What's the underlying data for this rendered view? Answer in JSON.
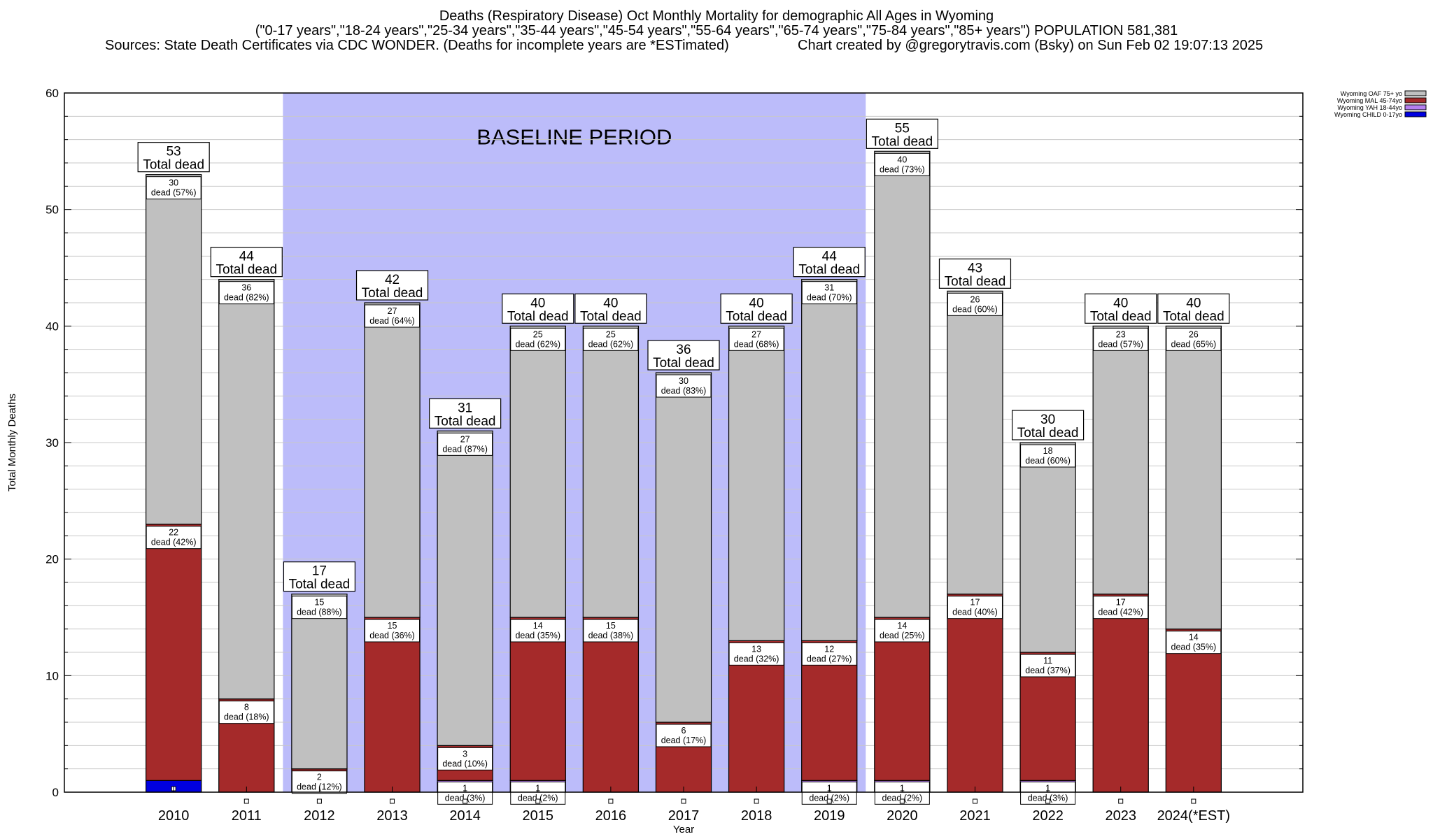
{
  "header": {
    "title_line1": "Deaths (Respiratory Disease) Oct Monthly Mortality for demographic All Ages in Wyoming",
    "title_line2": "(\"0-17 years\",\"18-24 years\",\"25-34 years\",\"35-44 years\",\"45-54 years\",\"55-64 years\",\"65-74 years\",\"75-84 years\",\"85+ years\") POPULATION 581,381",
    "sources": "Sources: State Death Certificates via CDC WONDER. (Deaths for incomplete years are *ESTimated)",
    "credit": "Chart created by @gregorytravis.com (Bsky) on Sun Feb 02 19:07:13 2025"
  },
  "chart_data": {
    "type": "bar",
    "stacked": true,
    "xlabel": "Year",
    "ylabel": "Total Monthly Deaths",
    "ylim": [
      0,
      60
    ],
    "yticks": [
      0,
      10,
      20,
      30,
      40,
      50,
      60
    ],
    "categories": [
      "2010",
      "2011",
      "2012",
      "2013",
      "2014",
      "2015",
      "2016",
      "2017",
      "2018",
      "2019",
      "2020",
      "2021",
      "2022",
      "2023",
      "2024(*EST)"
    ],
    "totals": [
      53,
      44,
      17,
      42,
      31,
      40,
      40,
      36,
      40,
      44,
      55,
      43,
      30,
      40,
      40
    ],
    "total_suffix": "Total dead",
    "baseline": {
      "label": "BASELINE PERIOD",
      "from": "2012",
      "to": "2019",
      "color": "#bcbcfa"
    },
    "series": [
      {
        "name": "Wyoming CHILD 0-17yo",
        "color": "#0000e0",
        "values": [
          1,
          0,
          0,
          0,
          0,
          0,
          0,
          0,
          0,
          0,
          0,
          0,
          0,
          0,
          0
        ],
        "pct": [
          2,
          0,
          0,
          0,
          0,
          0,
          0,
          0,
          0,
          0,
          0,
          0,
          0,
          0,
          0
        ]
      },
      {
        "name": "Wyoming YAH 18-44yo",
        "color": "#b57ff0",
        "values": [
          0,
          0,
          0,
          0,
          1,
          1,
          0,
          0,
          0,
          1,
          1,
          0,
          1,
          0,
          0
        ],
        "pct": [
          0,
          0,
          0,
          0,
          3,
          2,
          0,
          0,
          0,
          2,
          2,
          0,
          3,
          0,
          0
        ]
      },
      {
        "name": "Wyoming MAL 45-74yo",
        "color": "#a52a2a",
        "values": [
          22,
          8,
          2,
          15,
          3,
          14,
          15,
          6,
          13,
          12,
          14,
          17,
          11,
          17,
          14
        ],
        "pct": [
          42,
          18,
          12,
          36,
          10,
          35,
          38,
          17,
          32,
          27,
          25,
          40,
          37,
          42,
          35
        ]
      },
      {
        "name": "Wyoming OAF 75+ yo",
        "color": "#c0c0c0",
        "values": [
          30,
          36,
          15,
          27,
          27,
          25,
          25,
          30,
          27,
          31,
          40,
          26,
          18,
          23,
          26
        ],
        "pct": [
          57,
          82,
          88,
          64,
          87,
          62,
          62,
          83,
          68,
          70,
          73,
          60,
          60,
          57,
          65
        ]
      }
    ],
    "legend_position": "top-right",
    "grid": true,
    "segment_label_suffix": "dead"
  }
}
